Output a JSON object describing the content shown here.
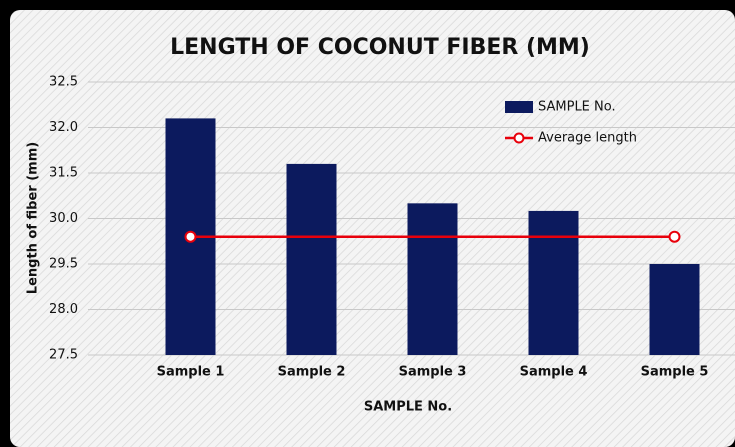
{
  "chart_data": {
    "type": "bar",
    "title": "LENGTH OF COCONUT FIBER (MM)",
    "x_label": "SAMPLE No.",
    "y_label": "Length of fiber (mm)",
    "categories": [
      "Sample 1",
      "Sample 2",
      "Sample 3",
      "Sample 4",
      "Sample 5"
    ],
    "series": [
      {
        "name": "SAMPLE No.",
        "type": "bar",
        "color": "#0c1a5e",
        "values": [
          32.1,
          31.6,
          30.5,
          30.25,
          29.5
        ]
      },
      {
        "name": "Average length",
        "type": "line",
        "color": "#e8000b",
        "values": [
          29.8,
          29.8,
          29.8,
          29.8,
          29.8
        ]
      }
    ],
    "ylim": [
      27.5,
      32.5
    ],
    "yticks": [
      27.5,
      {
        "value": 28,
        "label": "28.0"
      },
      29.5,
      {
        "value": 30,
        "label": "30.0"
      },
      31.5,
      {
        "value": 32,
        "label": "32.0"
      },
      32.5
    ],
    "grid": true,
    "legend": "upper right"
  }
}
